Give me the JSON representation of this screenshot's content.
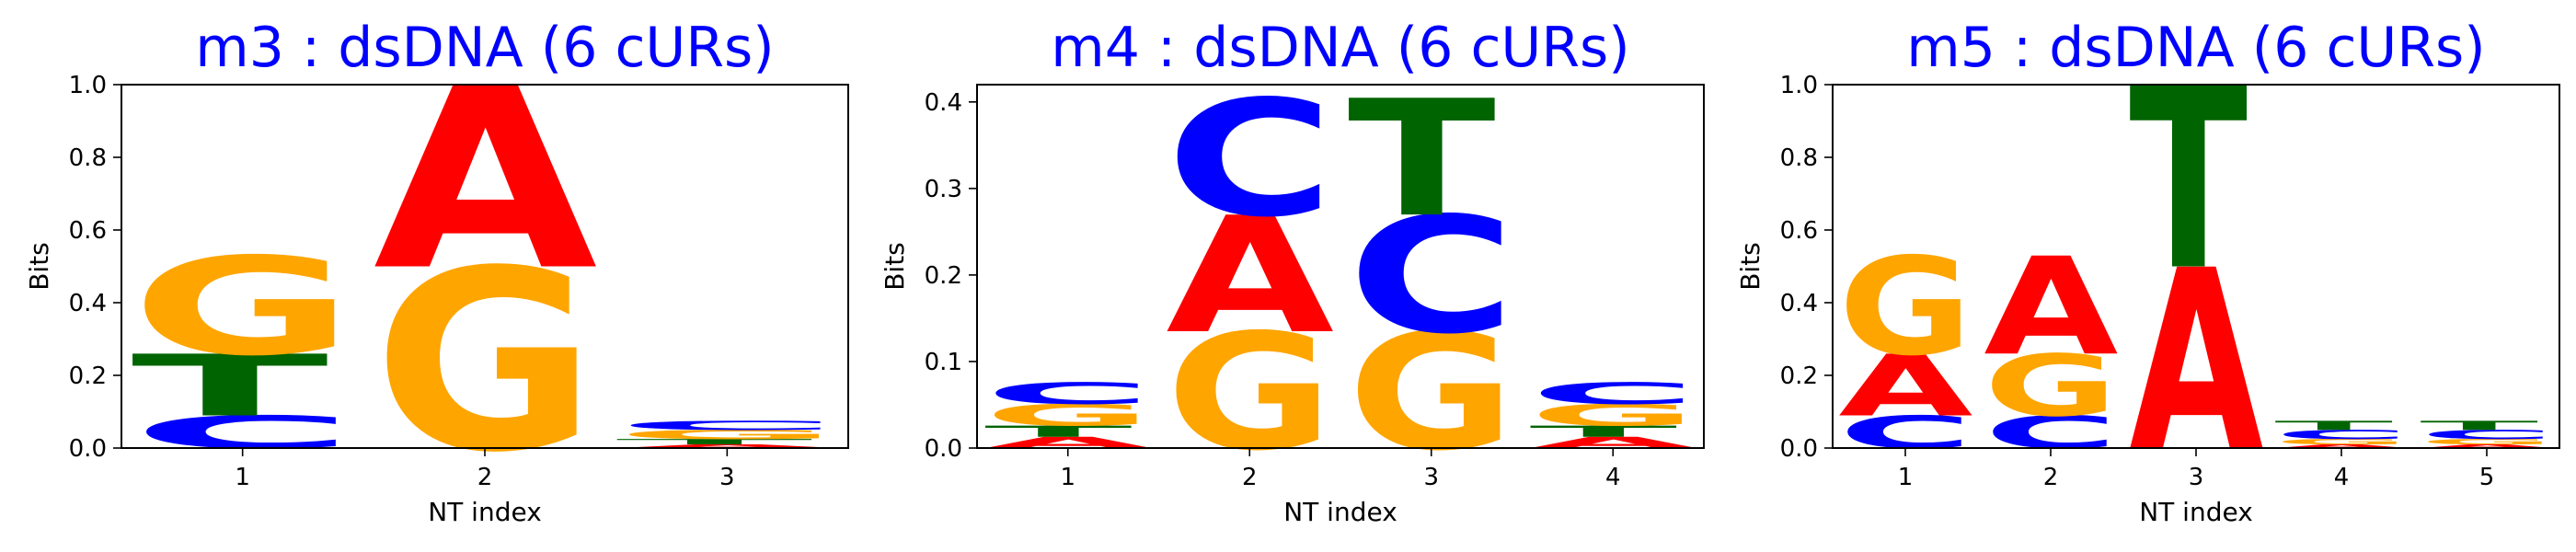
{
  "colors": {
    "A": "#ff0000",
    "C": "#0000ff",
    "G": "#ffa500",
    "T": "#006400",
    "title": "#0000ff"
  },
  "chart_data": [
    {
      "type": "sequence-logo",
      "title": "m3 : dsDNA (6 cURs)",
      "xlabel": "NT index",
      "ylabel": "Bits",
      "ylim": [
        0,
        1.0
      ],
      "yticks": [
        "0.0",
        "0.2",
        "0.4",
        "0.6",
        "0.8",
        "1.0"
      ],
      "xticks": [
        "1",
        "2",
        "3"
      ],
      "positions": [
        [
          {
            "letter": "C",
            "bits": 0.09
          },
          {
            "letter": "T",
            "bits": 0.17
          },
          {
            "letter": "G",
            "bits": 0.27
          }
        ],
        [
          {
            "letter": "G",
            "bits": 0.5
          },
          {
            "letter": "A",
            "bits": 0.5
          }
        ],
        [
          {
            "letter": "A",
            "bits": 0.01
          },
          {
            "letter": "T",
            "bits": 0.015
          },
          {
            "letter": "G",
            "bits": 0.025
          },
          {
            "letter": "C",
            "bits": 0.025
          }
        ]
      ]
    },
    {
      "type": "sequence-logo",
      "title": "m4 : dsDNA (6 cURs)",
      "xlabel": "NT index",
      "ylabel": "Bits",
      "ylim": [
        0,
        0.42
      ],
      "yticks": [
        "0.0",
        "0.1",
        "0.2",
        "0.3",
        "0.4"
      ],
      "xticks": [
        "1",
        "2",
        "3",
        "4"
      ],
      "positions": [
        [
          {
            "letter": "A",
            "bits": 0.013
          },
          {
            "letter": "T",
            "bits": 0.013
          },
          {
            "letter": "G",
            "bits": 0.025
          },
          {
            "letter": "C",
            "bits": 0.025
          }
        ],
        [
          {
            "letter": "G",
            "bits": 0.135
          },
          {
            "letter": "A",
            "bits": 0.135
          },
          {
            "letter": "C",
            "bits": 0.135
          }
        ],
        [
          {
            "letter": "G",
            "bits": 0.135
          },
          {
            "letter": "C",
            "bits": 0.135
          },
          {
            "letter": "T",
            "bits": 0.135
          }
        ],
        [
          {
            "letter": "A",
            "bits": 0.013
          },
          {
            "letter": "T",
            "bits": 0.013
          },
          {
            "letter": "G",
            "bits": 0.025
          },
          {
            "letter": "C",
            "bits": 0.025
          }
        ]
      ]
    },
    {
      "type": "sequence-logo",
      "title": "m5 : dsDNA (6 cURs)",
      "xlabel": "NT index",
      "ylabel": "Bits",
      "ylim": [
        0,
        1.0
      ],
      "yticks": [
        "0.0",
        "0.2",
        "0.4",
        "0.6",
        "0.8",
        "1.0"
      ],
      "xticks": [
        "1",
        "2",
        "3",
        "4",
        "5"
      ],
      "positions": [
        [
          {
            "letter": "C",
            "bits": 0.09
          },
          {
            "letter": "A",
            "bits": 0.17
          },
          {
            "letter": "G",
            "bits": 0.27
          }
        ],
        [
          {
            "letter": "C",
            "bits": 0.09
          },
          {
            "letter": "G",
            "bits": 0.17
          },
          {
            "letter": "A",
            "bits": 0.27
          }
        ],
        [
          {
            "letter": "A",
            "bits": 0.5
          },
          {
            "letter": "T",
            "bits": 0.5
          }
        ],
        [
          {
            "letter": "A",
            "bits": 0.01
          },
          {
            "letter": "G",
            "bits": 0.015
          },
          {
            "letter": "C",
            "bits": 0.025
          },
          {
            "letter": "T",
            "bits": 0.025
          }
        ],
        [
          {
            "letter": "A",
            "bits": 0.01
          },
          {
            "letter": "G",
            "bits": 0.015
          },
          {
            "letter": "C",
            "bits": 0.025
          },
          {
            "letter": "T",
            "bits": 0.025
          }
        ]
      ]
    }
  ]
}
